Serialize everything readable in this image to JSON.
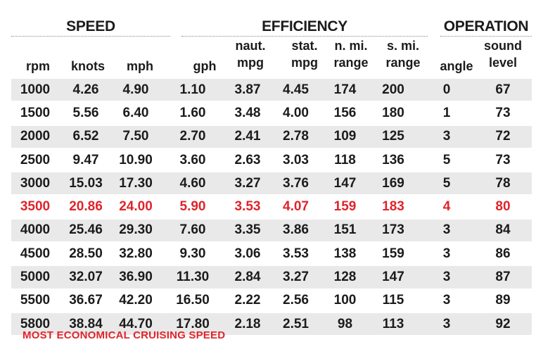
{
  "groups": {
    "speed": "SPEED",
    "efficiency": "EFFICIENCY",
    "operation": "OPERATION"
  },
  "columns": [
    {
      "top": "",
      "bottom": "rpm"
    },
    {
      "top": "",
      "bottom": "knots"
    },
    {
      "top": "",
      "bottom": "mph"
    },
    {
      "top": "",
      "bottom": "gph"
    },
    {
      "top": "naut.",
      "bottom": "mpg"
    },
    {
      "top": "stat.",
      "bottom": "mpg"
    },
    {
      "top": "n. mi.",
      "bottom": "range"
    },
    {
      "top": "s. mi.",
      "bottom": "range"
    },
    {
      "top": "",
      "bottom": "angle"
    },
    {
      "top": "sound",
      "bottom": "level"
    }
  ],
  "rows": [
    [
      "1000",
      "4.26",
      "4.90",
      "1.10",
      "3.87",
      "4.45",
      "174",
      "200",
      "0",
      "67"
    ],
    [
      "1500",
      "5.56",
      "6.40",
      "1.60",
      "3.48",
      "4.00",
      "156",
      "180",
      "1",
      "73"
    ],
    [
      "2000",
      "6.52",
      "7.50",
      "2.70",
      "2.41",
      "2.78",
      "109",
      "125",
      "3",
      "72"
    ],
    [
      "2500",
      "9.47",
      "10.90",
      "3.60",
      "2.63",
      "3.03",
      "118",
      "136",
      "5",
      "73"
    ],
    [
      "3000",
      "15.03",
      "17.30",
      "4.60",
      "3.27",
      "3.76",
      "147",
      "169",
      "5",
      "78"
    ],
    [
      "3500",
      "20.86",
      "24.00",
      "5.90",
      "3.53",
      "4.07",
      "159",
      "183",
      "4",
      "80"
    ],
    [
      "4000",
      "25.46",
      "29.30",
      "7.60",
      "3.35",
      "3.86",
      "151",
      "173",
      "3",
      "84"
    ],
    [
      "4500",
      "28.50",
      "32.80",
      "9.30",
      "3.06",
      "3.53",
      "138",
      "159",
      "3",
      "86"
    ],
    [
      "5000",
      "32.07",
      "36.90",
      "11.30",
      "2.84",
      "3.27",
      "128",
      "147",
      "3",
      "87"
    ],
    [
      "5500",
      "36.67",
      "42.20",
      "16.50",
      "2.22",
      "2.56",
      "100",
      "115",
      "3",
      "89"
    ],
    [
      "5800",
      "38.84",
      "44.70",
      "17.80",
      "2.18",
      "2.51",
      "98",
      "113",
      "3",
      "92"
    ]
  ],
  "highlight_rpm": "3500",
  "colors": {
    "highlight": "#e0242a",
    "row_stripe": "#e9e9e9",
    "text": "#1b1b1b"
  },
  "footnote": "MOST ECONOMICAL CRUISING SPEED"
}
